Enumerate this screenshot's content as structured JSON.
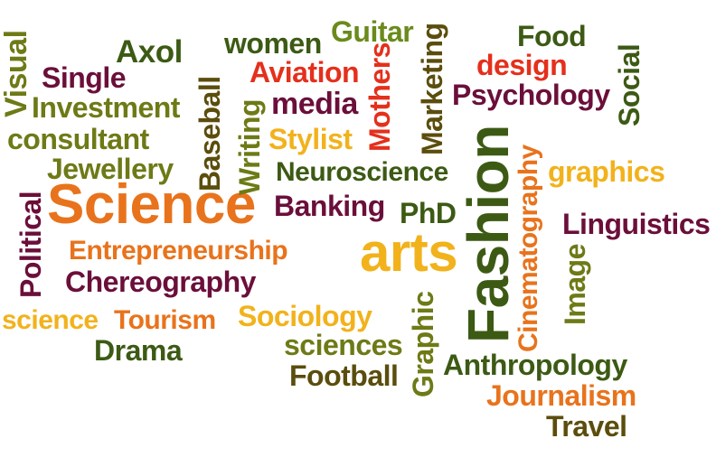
{
  "colors": {
    "olive": "#6e7a16",
    "dark_green": "#3c5a14",
    "maroon": "#6b0f3a",
    "orange": "#e8731c",
    "red": "#e4301c",
    "gold": "#f2b21c",
    "dark_olive": "#5b4d0c",
    "green_olive": "#6b8a1c"
  },
  "words": {
    "visual": "Visual",
    "axol": "Axol",
    "women": "women",
    "guitar": "Guitar",
    "food": "Food",
    "single": "Single",
    "aviation": "Aviation",
    "design": "design",
    "investment": "Investment",
    "media": "media",
    "psychology": "Psychology",
    "social": "Social",
    "baseball": "Baseball",
    "mothers": "Mothers",
    "marketing": "Marketing",
    "consultant": "consultant",
    "stylist": "Stylist",
    "writing": "Writing",
    "cinematography": "Cinematography",
    "jewellery": "Jewellery",
    "neuroscience": "Neuroscience",
    "graphics": "graphics",
    "science_big": "Science",
    "banking": "Banking",
    "phd": "PhD",
    "fashion": "Fashion",
    "linguistics": "Linguistics",
    "political": "Political",
    "entrepreneurship": "Entrepreneurship",
    "arts": "arts",
    "image": "Image",
    "chereography": "Chereography",
    "science_small": "science",
    "tourism": "Tourism",
    "sociology": "Sociology",
    "graphic": "Graphic",
    "drama": "Drama",
    "sciences": "sciences",
    "anthropology": "Anthropology",
    "football": "Football",
    "journalism": "Journalism",
    "travel": "Travel"
  }
}
